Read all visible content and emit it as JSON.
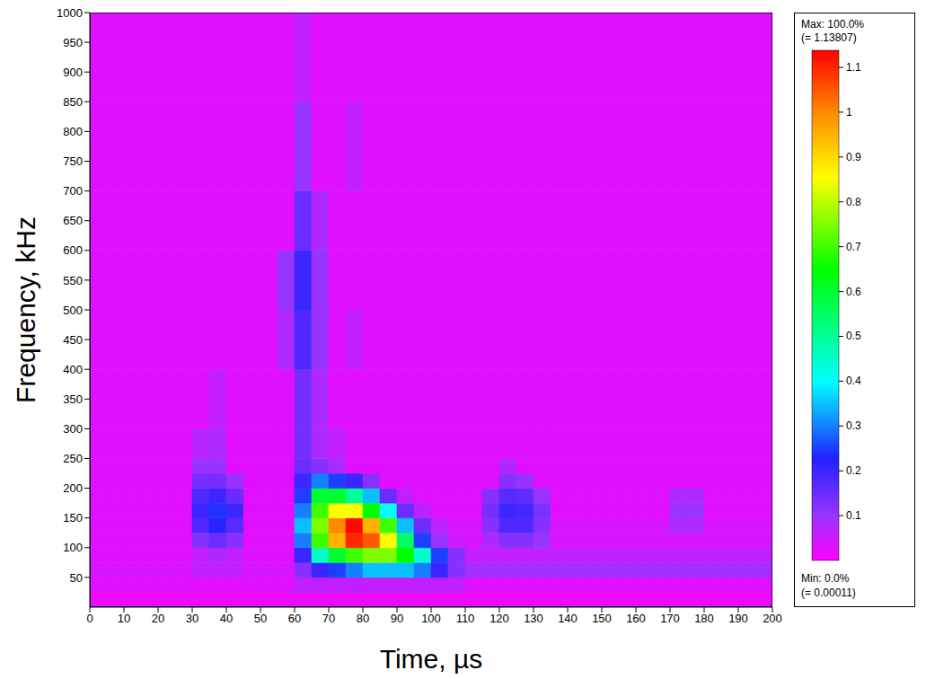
{
  "chart_data": {
    "type": "heatmap",
    "x_label": "Time, µs",
    "y_label": "Frequency, kHz",
    "xlim": [
      0,
      200
    ],
    "xticks": [
      0,
      10,
      20,
      30,
      40,
      50,
      60,
      70,
      80,
      90,
      100,
      110,
      120,
      130,
      140,
      150,
      160,
      170,
      180,
      190,
      200
    ],
    "ylim": [
      0,
      1000
    ],
    "yticks": [
      50,
      100,
      150,
      200,
      250,
      300,
      350,
      400,
      450,
      500,
      550,
      600,
      650,
      700,
      750,
      800,
      850,
      900,
      950,
      1000
    ],
    "time_bins": [
      0,
      5,
      10,
      15,
      20,
      25,
      30,
      35,
      40,
      45,
      50,
      55,
      60,
      65,
      70,
      75,
      80,
      85,
      90,
      95,
      100,
      105,
      110,
      115,
      120,
      125,
      130,
      135,
      140,
      145,
      150,
      155,
      160,
      165,
      170,
      175,
      180,
      185,
      190,
      195,
      200
    ],
    "freq_bins": [
      0,
      25,
      50,
      75,
      100,
      125,
      150,
      175,
      200,
      225,
      250,
      300,
      400,
      500,
      600,
      700,
      850,
      1000
    ],
    "cells": [
      [
        0.02,
        0.02,
        0.02,
        0.02,
        0.02,
        0.02,
        0.02,
        0.02,
        0.02,
        0.02,
        0.02,
        0.02,
        0.02,
        0.02,
        0.02,
        0.02,
        0.02,
        0.02,
        0.02,
        0.02,
        0.02,
        0.02,
        0.02,
        0.02,
        0.02,
        0.02,
        0.02,
        0.02,
        0.02,
        0.02,
        0.02,
        0.02,
        0.02,
        0.02,
        0.02,
        0.02,
        0.02,
        0.02,
        0.02,
        0.02
      ],
      [
        0.03,
        0.03,
        0.03,
        0.03,
        0.03,
        0.03,
        0.03,
        0.03,
        0.03,
        0.03,
        0.03,
        0.03,
        0.06,
        0.06,
        0.06,
        0.06,
        0.06,
        0.06,
        0.06,
        0.06,
        0.06,
        0.06,
        0.03,
        0.03,
        0.03,
        0.03,
        0.03,
        0.03,
        0.03,
        0.03,
        0.03,
        0.03,
        0.03,
        0.03,
        0.03,
        0.03,
        0.03,
        0.03,
        0.03,
        0.03
      ],
      [
        0.04,
        0.04,
        0.04,
        0.04,
        0.04,
        0.04,
        0.06,
        0.06,
        0.06,
        0.04,
        0.04,
        0.04,
        0.12,
        0.2,
        0.25,
        0.3,
        0.35,
        0.35,
        0.35,
        0.3,
        0.2,
        0.12,
        0.09,
        0.09,
        0.09,
        0.09,
        0.09,
        0.09,
        0.09,
        0.09,
        0.09,
        0.09,
        0.09,
        0.09,
        0.09,
        0.09,
        0.09,
        0.09,
        0.09,
        0.09
      ],
      [
        0.03,
        0.03,
        0.03,
        0.03,
        0.03,
        0.03,
        0.06,
        0.08,
        0.06,
        0.03,
        0.03,
        0.03,
        0.2,
        0.45,
        0.6,
        0.7,
        0.75,
        0.75,
        0.65,
        0.45,
        0.25,
        0.12,
        0.06,
        0.06,
        0.06,
        0.06,
        0.06,
        0.06,
        0.06,
        0.06,
        0.06,
        0.06,
        0.06,
        0.06,
        0.06,
        0.06,
        0.06,
        0.06,
        0.06,
        0.06
      ],
      [
        0.03,
        0.03,
        0.03,
        0.03,
        0.03,
        0.03,
        0.12,
        0.15,
        0.12,
        0.03,
        0.03,
        0.03,
        0.3,
        0.7,
        0.95,
        1.1,
        1.05,
        0.85,
        0.55,
        0.25,
        0.1,
        0.05,
        0.04,
        0.08,
        0.12,
        0.12,
        0.1,
        0.04,
        0.04,
        0.04,
        0.04,
        0.04,
        0.04,
        0.04,
        0.04,
        0.04,
        0.04,
        0.04,
        0.04,
        0.04
      ],
      [
        0.03,
        0.03,
        0.03,
        0.03,
        0.03,
        0.03,
        0.18,
        0.22,
        0.17,
        0.03,
        0.03,
        0.03,
        0.35,
        0.75,
        1.0,
        1.13,
        0.95,
        0.7,
        0.35,
        0.15,
        0.07,
        0.04,
        0.04,
        0.12,
        0.18,
        0.18,
        0.12,
        0.04,
        0.04,
        0.04,
        0.04,
        0.04,
        0.04,
        0.04,
        0.08,
        0.08,
        0.04,
        0.04,
        0.04,
        0.04
      ],
      [
        0.03,
        0.03,
        0.03,
        0.03,
        0.03,
        0.03,
        0.2,
        0.24,
        0.2,
        0.03,
        0.03,
        0.03,
        0.3,
        0.7,
        0.85,
        0.85,
        0.65,
        0.4,
        0.15,
        0.07,
        0.03,
        0.03,
        0.03,
        0.14,
        0.2,
        0.19,
        0.13,
        0.03,
        0.03,
        0.03,
        0.03,
        0.03,
        0.03,
        0.03,
        0.1,
        0.1,
        0.03,
        0.03,
        0.03,
        0.03
      ],
      [
        0.03,
        0.03,
        0.03,
        0.03,
        0.03,
        0.03,
        0.18,
        0.2,
        0.15,
        0.03,
        0.03,
        0.03,
        0.25,
        0.6,
        0.6,
        0.5,
        0.35,
        0.15,
        0.06,
        0.03,
        0.03,
        0.03,
        0.03,
        0.12,
        0.17,
        0.16,
        0.1,
        0.03,
        0.03,
        0.03,
        0.03,
        0.03,
        0.03,
        0.03,
        0.08,
        0.08,
        0.03,
        0.03,
        0.03,
        0.03
      ],
      [
        0.03,
        0.03,
        0.03,
        0.03,
        0.03,
        0.03,
        0.14,
        0.14,
        0.1,
        0.03,
        0.03,
        0.03,
        0.2,
        0.3,
        0.25,
        0.2,
        0.12,
        0.03,
        0.03,
        0.03,
        0.03,
        0.03,
        0.03,
        0.03,
        0.12,
        0.1,
        0.03,
        0.03,
        0.03,
        0.03,
        0.03,
        0.03,
        0.03,
        0.03,
        0.03,
        0.03,
        0.03,
        0.03,
        0.03,
        0.03
      ],
      [
        0.03,
        0.03,
        0.03,
        0.03,
        0.03,
        0.03,
        0.1,
        0.1,
        0.03,
        0.03,
        0.03,
        0.03,
        0.15,
        0.12,
        0.08,
        0.03,
        0.03,
        0.03,
        0.03,
        0.03,
        0.03,
        0.03,
        0.03,
        0.03,
        0.08,
        0.03,
        0.03,
        0.03,
        0.03,
        0.03,
        0.03,
        0.03,
        0.03,
        0.03,
        0.03,
        0.03,
        0.03,
        0.03,
        0.03,
        0.03
      ],
      [
        0.03,
        0.03,
        0.03,
        0.03,
        0.03,
        0.03,
        0.07,
        0.08,
        0.03,
        0.03,
        0.03,
        0.03,
        0.14,
        0.08,
        0.06,
        0.03,
        0.03,
        0.03,
        0.03,
        0.03,
        0.03,
        0.03,
        0.03,
        0.03,
        0.03,
        0.03,
        0.03,
        0.03,
        0.03,
        0.03,
        0.03,
        0.03,
        0.03,
        0.03,
        0.03,
        0.03,
        0.03,
        0.03,
        0.03,
        0.03
      ],
      [
        0.03,
        0.03,
        0.03,
        0.03,
        0.03,
        0.03,
        0.03,
        0.06,
        0.03,
        0.03,
        0.03,
        0.03,
        0.14,
        0.08,
        0.03,
        0.03,
        0.03,
        0.03,
        0.03,
        0.03,
        0.03,
        0.03,
        0.03,
        0.03,
        0.03,
        0.03,
        0.03,
        0.03,
        0.03,
        0.03,
        0.03,
        0.03,
        0.03,
        0.03,
        0.03,
        0.03,
        0.03,
        0.03,
        0.03,
        0.03
      ],
      [
        0.03,
        0.03,
        0.03,
        0.03,
        0.03,
        0.03,
        0.03,
        0.03,
        0.03,
        0.03,
        0.03,
        0.08,
        0.18,
        0.1,
        0.03,
        0.06,
        0.03,
        0.03,
        0.03,
        0.03,
        0.03,
        0.03,
        0.03,
        0.03,
        0.03,
        0.03,
        0.03,
        0.03,
        0.03,
        0.03,
        0.03,
        0.03,
        0.03,
        0.03,
        0.03,
        0.03,
        0.03,
        0.03,
        0.03,
        0.03
      ],
      [
        0.03,
        0.03,
        0.03,
        0.03,
        0.03,
        0.03,
        0.03,
        0.03,
        0.03,
        0.03,
        0.03,
        0.1,
        0.2,
        0.1,
        0.03,
        0.03,
        0.03,
        0.03,
        0.03,
        0.03,
        0.03,
        0.03,
        0.03,
        0.03,
        0.03,
        0.03,
        0.03,
        0.03,
        0.03,
        0.03,
        0.03,
        0.03,
        0.03,
        0.03,
        0.03,
        0.03,
        0.03,
        0.03,
        0.03,
        0.03
      ],
      [
        0.03,
        0.03,
        0.03,
        0.03,
        0.03,
        0.03,
        0.03,
        0.03,
        0.03,
        0.03,
        0.03,
        0.03,
        0.15,
        0.08,
        0.03,
        0.03,
        0.03,
        0.03,
        0.03,
        0.03,
        0.03,
        0.03,
        0.03,
        0.03,
        0.03,
        0.03,
        0.03,
        0.03,
        0.03,
        0.03,
        0.03,
        0.03,
        0.03,
        0.03,
        0.03,
        0.03,
        0.03,
        0.03,
        0.03,
        0.03
      ],
      [
        0.03,
        0.03,
        0.03,
        0.03,
        0.03,
        0.03,
        0.03,
        0.03,
        0.03,
        0.03,
        0.03,
        0.03,
        0.1,
        0.03,
        0.03,
        0.06,
        0.03,
        0.03,
        0.03,
        0.03,
        0.03,
        0.03,
        0.03,
        0.03,
        0.03,
        0.03,
        0.03,
        0.03,
        0.03,
        0.03,
        0.03,
        0.03,
        0.03,
        0.03,
        0.03,
        0.03,
        0.03,
        0.03,
        0.03,
        0.03
      ],
      [
        0.03,
        0.03,
        0.03,
        0.03,
        0.03,
        0.03,
        0.03,
        0.03,
        0.03,
        0.03,
        0.03,
        0.03,
        0.06,
        0.03,
        0.03,
        0.03,
        0.03,
        0.03,
        0.03,
        0.03,
        0.03,
        0.03,
        0.03,
        0.03,
        0.03,
        0.03,
        0.03,
        0.03,
        0.03,
        0.03,
        0.03,
        0.03,
        0.03,
        0.03,
        0.03,
        0.03,
        0.03,
        0.03,
        0.03,
        0.03
      ]
    ],
    "colorbar": {
      "range": [
        0.00011,
        1.13807
      ],
      "ticks": [
        0.1,
        0.2,
        0.3,
        0.4,
        0.5,
        0.6,
        0.7,
        0.8,
        0.9,
        1,
        1.1
      ],
      "max_label": "Max: 100.0%",
      "max_value_label": "(= 1.13807)",
      "min_label": "Min: 0.0%",
      "min_value_label": "(= 0.00011)"
    }
  }
}
